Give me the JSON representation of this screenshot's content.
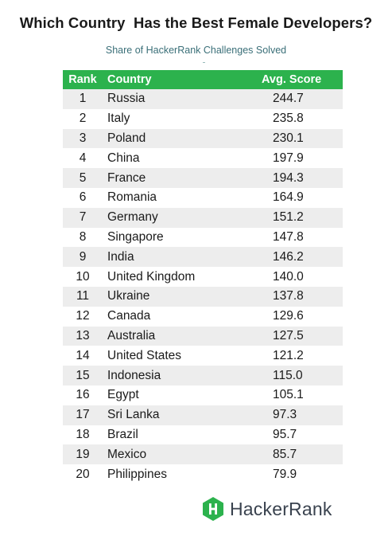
{
  "title": "Which Country  Has the Best Female Developers?",
  "subtitle": "Share of HackerRank Challenges Solved",
  "brand": {
    "name": "HackerRank",
    "icon": "hackerrank-logo-icon",
    "color": "#2cb24d"
  },
  "chart_data": {
    "type": "table",
    "columns": [
      "Rank",
      "Country",
      "Avg. Score"
    ],
    "header_color": "#2cb24d",
    "rows": [
      {
        "rank": "1",
        "country": "Russia",
        "score": "244.7"
      },
      {
        "rank": "2",
        "country": "Italy",
        "score": "235.8"
      },
      {
        "rank": "3",
        "country": "Poland",
        "score": "230.1"
      },
      {
        "rank": "4",
        "country": "China",
        "score": "197.9"
      },
      {
        "rank": "5",
        "country": "France",
        "score": "194.3"
      },
      {
        "rank": "6",
        "country": "Romania",
        "score": "164.9"
      },
      {
        "rank": "7",
        "country": "Germany",
        "score": "151.2"
      },
      {
        "rank": "8",
        "country": "Singapore",
        "score": "147.8"
      },
      {
        "rank": "9",
        "country": "India",
        "score": "146.2"
      },
      {
        "rank": "10",
        "country": "United Kingdom",
        "score": "140.0"
      },
      {
        "rank": "11",
        "country": "Ukraine",
        "score": "137.8"
      },
      {
        "rank": "12",
        "country": "Canada",
        "score": "129.6"
      },
      {
        "rank": "13",
        "country": "Australia",
        "score": "127.5"
      },
      {
        "rank": "14",
        "country": "United States",
        "score": "121.2"
      },
      {
        "rank": "15",
        "country": "Indonesia",
        "score": "115.0"
      },
      {
        "rank": "16",
        "country": "Egypt",
        "score": "105.1"
      },
      {
        "rank": "17",
        "country": "Sri Lanka",
        "score": "97.3"
      },
      {
        "rank": "18",
        "country": "Brazil",
        "score": "95.7"
      },
      {
        "rank": "19",
        "country": "Mexico",
        "score": "85.7"
      },
      {
        "rank": "20",
        "country": "Philippines",
        "score": "79.9"
      }
    ]
  }
}
